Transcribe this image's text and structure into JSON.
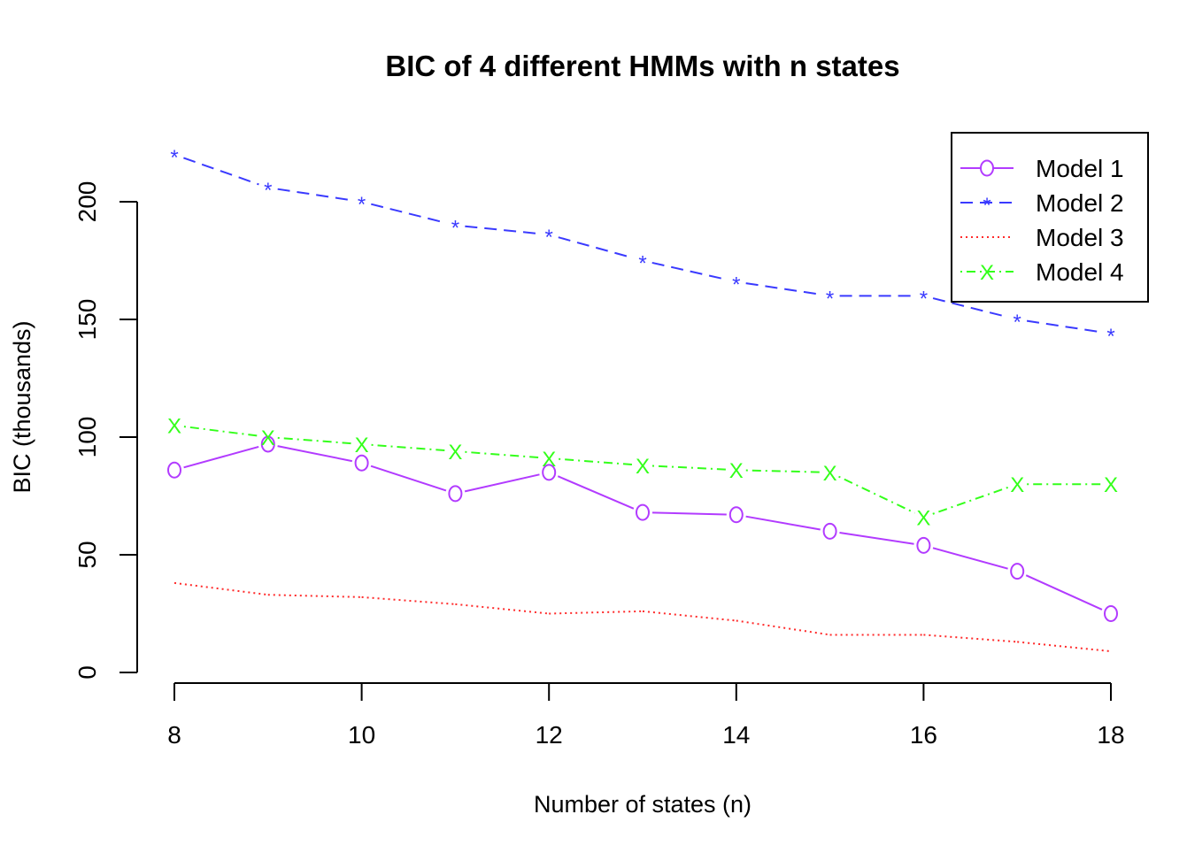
{
  "chart_data": {
    "type": "line",
    "title": "BIC of 4 different HMMs with n states",
    "xlabel": "Number of states (n)",
    "ylabel": "BIC (thousands)",
    "x": [
      8,
      9,
      10,
      11,
      12,
      13,
      14,
      15,
      16,
      17,
      18
    ],
    "xlim": [
      8,
      18
    ],
    "ylim": [
      0,
      200
    ],
    "xticks": [
      8,
      10,
      12,
      14,
      16,
      18
    ],
    "yticks": [
      0,
      50,
      100,
      150,
      200
    ],
    "grid": false,
    "legend_position": "top-right",
    "series": [
      {
        "name": "Model 1",
        "color": "#b23bff",
        "line_style": "solid",
        "marker": "o",
        "values": [
          86,
          97,
          89,
          76,
          85,
          68,
          67,
          60,
          54,
          43,
          25
        ]
      },
      {
        "name": "Model 2",
        "color": "#3a3aff",
        "line_style": "dashed",
        "marker": "*",
        "values": [
          220,
          206,
          200,
          190,
          186,
          175,
          166,
          160,
          160,
          150,
          144
        ]
      },
      {
        "name": "Model 3",
        "color": "#ff2a2a",
        "line_style": "dotted",
        "marker": "none",
        "values": [
          38,
          33,
          32,
          29,
          25,
          26,
          22,
          16,
          16,
          13,
          9
        ]
      },
      {
        "name": "Model 4",
        "color": "#33ff1a",
        "line_style": "dotdash",
        "marker": "x",
        "values": [
          105,
          100,
          97,
          94,
          91,
          88,
          86,
          85,
          66,
          80,
          80
        ]
      }
    ]
  }
}
